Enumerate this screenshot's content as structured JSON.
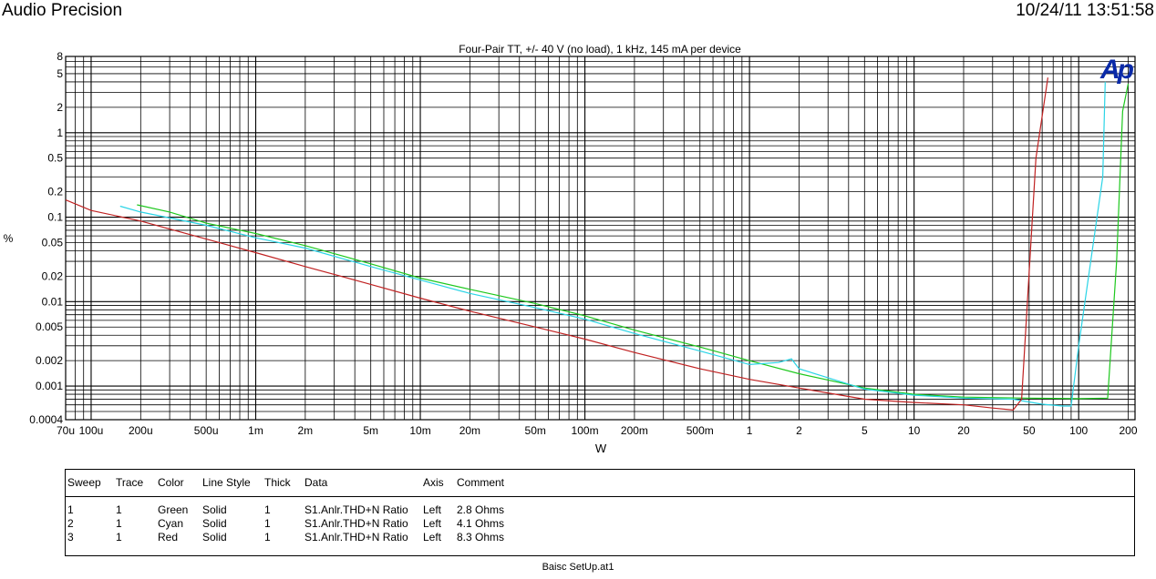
{
  "header": {
    "app_name": "Audio Precision",
    "datetime": "10/24/11 13:51:58"
  },
  "logo_text": "Ap",
  "chart_data": {
    "type": "line",
    "title": "Four-Pair TT, +/- 40 V (no load), 1 kHz, 145 mA per device",
    "xlabel": "W",
    "ylabel": "%",
    "xscale": "log",
    "yscale": "log",
    "xlim": [
      7e-05,
      220
    ],
    "ylim": [
      0.0004,
      8
    ],
    "grid": true,
    "x_tick_labels": [
      {
        "v": 7e-05,
        "t": "70u"
      },
      {
        "v": 0.0001,
        "t": "100u"
      },
      {
        "v": 0.0002,
        "t": "200u"
      },
      {
        "v": 0.0005,
        "t": "500u"
      },
      {
        "v": 0.001,
        "t": "1m"
      },
      {
        "v": 0.002,
        "t": "2m"
      },
      {
        "v": 0.005,
        "t": "5m"
      },
      {
        "v": 0.01,
        "t": "10m"
      },
      {
        "v": 0.02,
        "t": "20m"
      },
      {
        "v": 0.05,
        "t": "50m"
      },
      {
        "v": 0.1,
        "t": "100m"
      },
      {
        "v": 0.2,
        "t": "200m"
      },
      {
        "v": 0.5,
        "t": "500m"
      },
      {
        "v": 1,
        "t": "1"
      },
      {
        "v": 2,
        "t": "2"
      },
      {
        "v": 5,
        "t": "5"
      },
      {
        "v": 10,
        "t": "10"
      },
      {
        "v": 20,
        "t": "20"
      },
      {
        "v": 50,
        "t": "50"
      },
      {
        "v": 100,
        "t": "100"
      },
      {
        "v": 200,
        "t": "200"
      }
    ],
    "y_tick_labels": [
      {
        "v": 8,
        "t": "8"
      },
      {
        "v": 5,
        "t": "5"
      },
      {
        "v": 2,
        "t": "2"
      },
      {
        "v": 1,
        "t": "1"
      },
      {
        "v": 0.5,
        "t": "0.5"
      },
      {
        "v": 0.2,
        "t": "0.2"
      },
      {
        "v": 0.1,
        "t": "0.1"
      },
      {
        "v": 0.05,
        "t": "0.05"
      },
      {
        "v": 0.02,
        "t": "0.02"
      },
      {
        "v": 0.01,
        "t": "0.01"
      },
      {
        "v": 0.005,
        "t": "0.005"
      },
      {
        "v": 0.002,
        "t": "0.002"
      },
      {
        "v": 0.001,
        "t": "0.001"
      },
      {
        "v": 0.0004,
        "t": "0.0004"
      }
    ],
    "series": [
      {
        "name": "2.8 Ohms",
        "color": "#1ec81e",
        "x": [
          0.00019,
          0.0003,
          0.0005,
          0.001,
          0.002,
          0.005,
          0.01,
          0.02,
          0.05,
          0.1,
          0.2,
          0.5,
          1,
          2,
          5,
          10,
          20,
          50,
          100,
          150,
          170,
          185,
          200
        ],
        "y": [
          0.14,
          0.115,
          0.085,
          0.064,
          0.046,
          0.028,
          0.019,
          0.014,
          0.0095,
          0.0068,
          0.0046,
          0.0029,
          0.002,
          0.0014,
          0.00095,
          0.0008,
          0.00074,
          0.00072,
          0.00071,
          0.00072,
          0.03,
          1.8,
          3.8
        ]
      },
      {
        "name": "4.1 Ohms",
        "color": "#2ad4e6",
        "x": [
          0.00015,
          0.0002,
          0.0005,
          0.001,
          0.002,
          0.005,
          0.01,
          0.02,
          0.05,
          0.1,
          0.2,
          0.5,
          1,
          1.5,
          1.8,
          2,
          5,
          10,
          20,
          40,
          60,
          80,
          90,
          100,
          140,
          145
        ],
        "y": [
          0.135,
          0.115,
          0.08,
          0.057,
          0.043,
          0.026,
          0.018,
          0.0125,
          0.0085,
          0.0062,
          0.0042,
          0.0026,
          0.0018,
          0.0019,
          0.0021,
          0.0016,
          0.00092,
          0.00078,
          0.00072,
          0.0007,
          0.00061,
          0.00058,
          0.00058,
          0.003,
          0.3,
          4.0
        ]
      },
      {
        "name": "8.3 Ohms",
        "color": "#c02222",
        "x": [
          7e-05,
          0.0001,
          0.0002,
          0.0005,
          0.001,
          0.002,
          0.005,
          0.01,
          0.02,
          0.05,
          0.1,
          0.2,
          0.5,
          1,
          2,
          5,
          10,
          20,
          30,
          40,
          45,
          55,
          65
        ],
        "y": [
          0.16,
          0.12,
          0.09,
          0.055,
          0.038,
          0.026,
          0.016,
          0.011,
          0.0077,
          0.005,
          0.0036,
          0.0025,
          0.0016,
          0.0012,
          0.00095,
          0.0007,
          0.00064,
          0.0006,
          0.00055,
          0.00052,
          0.0007,
          0.5,
          4.5
        ]
      }
    ]
  },
  "legend_table": {
    "headers": [
      "Sweep",
      "Trace",
      "Color",
      "Line Style",
      "Thick",
      "Data",
      "Axis",
      "Comment"
    ],
    "rows": [
      [
        "1",
        "1",
        "Green",
        "Solid",
        "1",
        "S1.Anlr.THD+N Ratio",
        "Left",
        "2.8 Ohms"
      ],
      [
        "2",
        "1",
        "Cyan",
        "Solid",
        "1",
        "S1.Anlr.THD+N Ratio",
        "Left",
        "4.1 Ohms"
      ],
      [
        "3",
        "1",
        "Red",
        "Solid",
        "1",
        "S1.Anlr.THD+N Ratio",
        "Left",
        "8.3 Ohms"
      ]
    ]
  },
  "footer": {
    "file_name": "Baisc SetUp.at1"
  }
}
